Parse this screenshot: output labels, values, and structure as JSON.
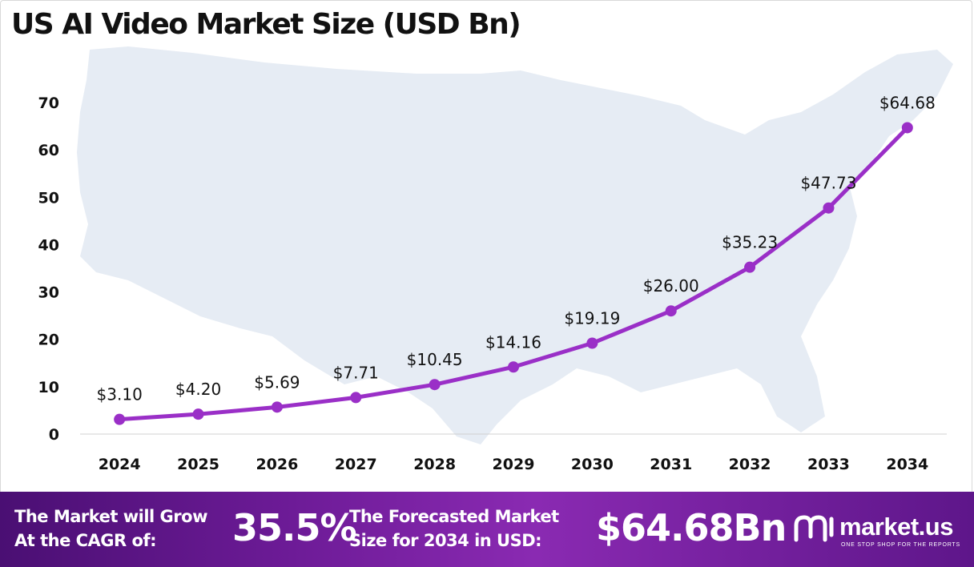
{
  "title": "US AI Video Market Size (USD Bn)",
  "chart_data": {
    "type": "line",
    "title": "US AI Video Market Size (USD Bn)",
    "categories": [
      "2024",
      "2025",
      "2026",
      "2027",
      "2028",
      "2029",
      "2030",
      "2031",
      "2032",
      "2033",
      "2034"
    ],
    "values": [
      3.1,
      4.2,
      5.69,
      7.71,
      10.45,
      14.16,
      19.19,
      26.0,
      35.23,
      47.73,
      64.68
    ],
    "data_labels": [
      "$3.10",
      "$4.20",
      "$5.69",
      "$7.71",
      "$10.45",
      "$14.16",
      "$19.19",
      "$26.00",
      "$35.23",
      "$47.73",
      "$64.68"
    ],
    "ylim": [
      0,
      70
    ],
    "yticks": [
      0,
      10,
      20,
      30,
      40,
      50,
      60,
      70
    ],
    "grid": false,
    "line_color": "#9a2fc7",
    "background_map": "us-map-silhouette"
  },
  "footer": {
    "cagr_text_line1": "The Market will Grow",
    "cagr_text_line2": "At the CAGR of:",
    "cagr_value": "35.5%",
    "forecast_text_line1": "The Forecasted Market",
    "forecast_text_line2": "Size for 2034 in USD:",
    "forecast_value": "$64.68Bn",
    "brand_name": "market.us",
    "brand_tagline": "ONE STOP SHOP FOR THE REPORTS",
    "brand_icon": "market-us-logo-icon"
  }
}
